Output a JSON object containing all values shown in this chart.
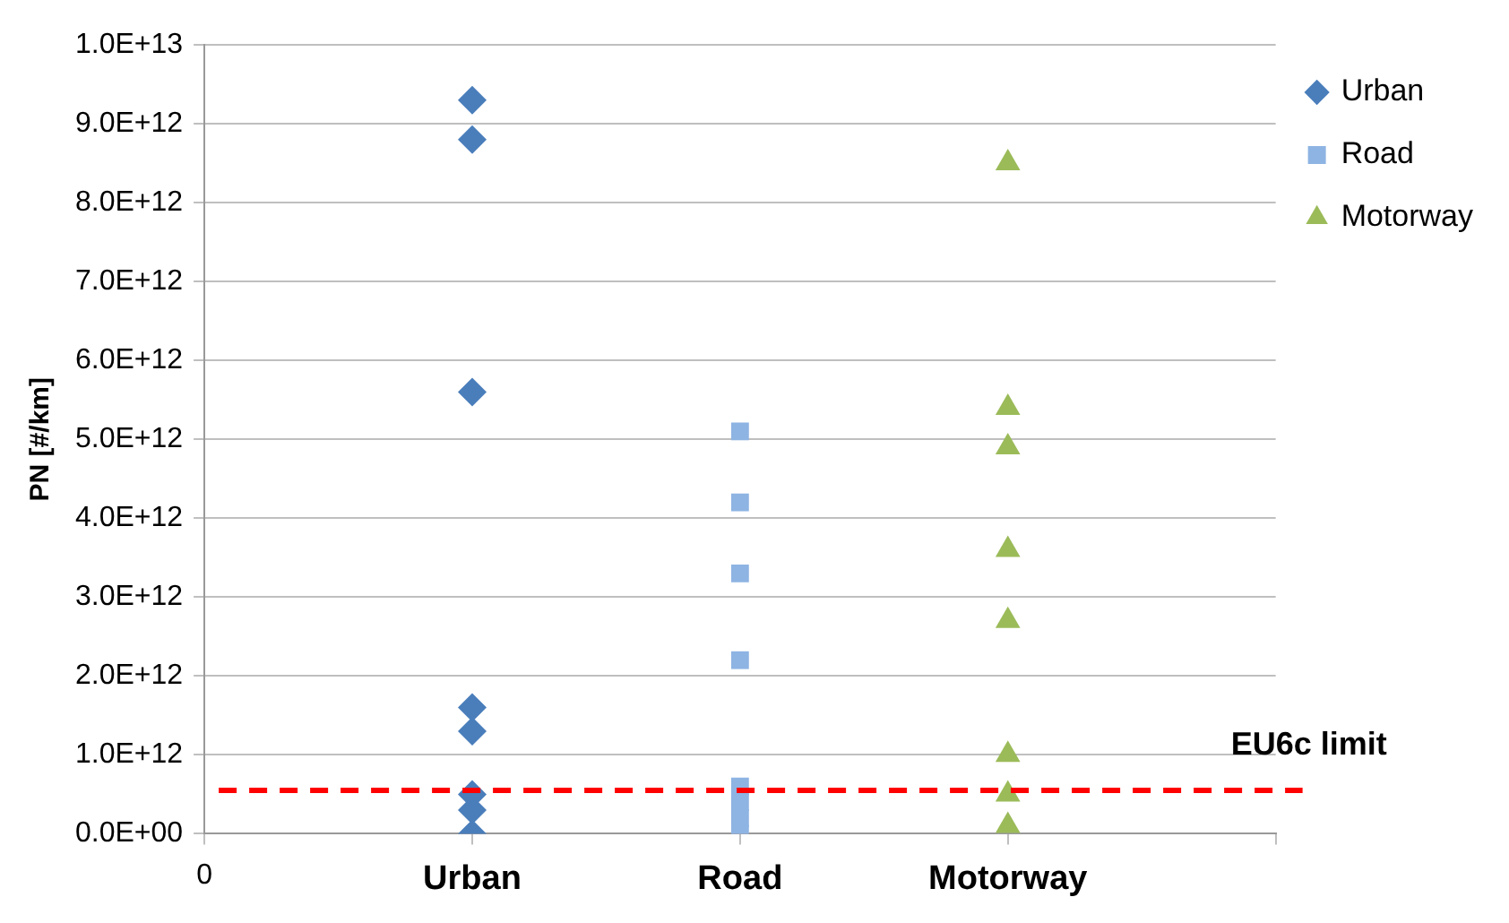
{
  "chart_data": {
    "type": "scatter",
    "ylabel": "PN [#/km]",
    "categories": [
      "0",
      "Urban",
      "Road",
      "Motorway",
      null
    ],
    "ylim": [
      0,
      10000000000000.0
    ],
    "yticks": [
      {
        "value": 0,
        "label": "0.0E+00"
      },
      {
        "value": 1000000000000.0,
        "label": "1.0E+12"
      },
      {
        "value": 2000000000000.0,
        "label": "2.0E+12"
      },
      {
        "value": 3000000000000.0,
        "label": "3.0E+12"
      },
      {
        "value": 4000000000000.0,
        "label": "4.0E+12"
      },
      {
        "value": 5000000000000.0,
        "label": "5.0E+12"
      },
      {
        "value": 6000000000000.0,
        "label": "6.0E+12"
      },
      {
        "value": 7000000000000.0,
        "label": "7.0E+12"
      },
      {
        "value": 8000000000000.0,
        "label": "8.0E+12"
      },
      {
        "value": 9000000000000.0,
        "label": "9.0E+12"
      },
      {
        "value": 10000000000000.0,
        "label": "1.0E+13"
      }
    ],
    "grid": "y",
    "legend": "top right",
    "series": [
      {
        "name": "Urban",
        "color": "#4a7ebb",
        "marker": "diamond",
        "x": [
          "Urban",
          "Urban",
          "Urban",
          "Urban",
          "Urban",
          "Urban",
          "Urban",
          "Urban"
        ],
        "values": [
          9300000000000.0,
          8800000000000.0,
          5600000000000.0,
          1600000000000.0,
          1300000000000.0,
          500000000000.0,
          300000000000.0,
          0
        ]
      },
      {
        "name": "Road",
        "color": "#8eb4e3",
        "marker": "square",
        "x": [
          "Road",
          "Road",
          "Road",
          "Road",
          "Road",
          "Road",
          "Road",
          "Road"
        ],
        "values": [
          5100000000000.0,
          4200000000000.0,
          3300000000000.0,
          2200000000000.0,
          600000000000.0,
          400000000000.0,
          200000000000.0,
          0
        ]
      },
      {
        "name": "Motorway",
        "color": "#9bbb59",
        "marker": "triangle",
        "x": [
          "Motorway",
          "Motorway",
          "Motorway",
          "Motorway",
          "Motorway",
          "Motorway",
          "Motorway",
          "Motorway"
        ],
        "values": [
          8500000000000.0,
          5400000000000.0,
          4900000000000.0,
          3600000000000.0,
          2700000000000.0,
          1000000000000.0,
          500000000000.0,
          100000000000.0
        ]
      }
    ],
    "ref_lines": [
      {
        "axis": "y",
        "value": 550000000000.0,
        "label": "EU6c limit",
        "color": "#ff0000",
        "line_style": "dashed"
      }
    ]
  }
}
